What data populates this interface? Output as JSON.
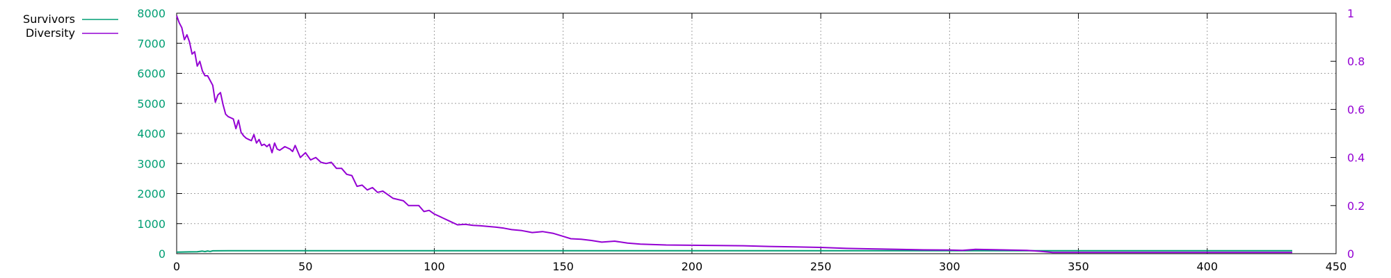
{
  "chart_data": {
    "type": "line",
    "legend_placement": "top-left",
    "grid": true,
    "x_axis": {
      "range": [
        0,
        450
      ],
      "ticks": [
        "0",
        "50",
        "100",
        "150",
        "200",
        "250",
        "300",
        "350",
        "400",
        "450"
      ]
    },
    "y_axis_left": {
      "range": [
        0,
        8000
      ],
      "ticks": [
        "0",
        "1000",
        "2000",
        "3000",
        "4000",
        "5000",
        "6000",
        "7000",
        "8000"
      ],
      "color": "#009e73"
    },
    "y_axis_right": {
      "range": [
        0,
        1
      ],
      "ticks": [
        "0",
        "0.2",
        "0.4",
        "0.6",
        "0.8",
        "1"
      ],
      "color": "#9400d3"
    },
    "series": [
      {
        "name": "Survivors",
        "axis": "left",
        "color": "#009e73",
        "x": [
          0,
          2,
          5,
          8,
          10,
          11,
          12,
          13,
          14,
          20,
          100,
          200,
          300,
          400,
          433
        ],
        "y": [
          50,
          55,
          60,
          65,
          85,
          70,
          90,
          75,
          95,
          100,
          100,
          100,
          100,
          100,
          100
        ]
      },
      {
        "name": "Diversity",
        "axis": "right",
        "color": "#9400d3",
        "x": [
          0,
          1,
          2,
          3,
          4,
          5,
          6,
          7,
          8,
          9,
          10,
          11,
          12,
          13,
          14,
          15,
          16,
          17,
          18,
          19,
          20,
          21,
          22,
          23,
          24,
          25,
          26,
          27,
          28,
          29,
          30,
          31,
          32,
          33,
          34,
          35,
          36,
          37,
          38,
          39,
          40,
          42,
          44,
          45,
          46,
          48,
          50,
          52,
          54,
          56,
          58,
          60,
          62,
          64,
          66,
          68,
          70,
          72,
          74,
          76,
          78,
          80,
          82,
          84,
          86,
          88,
          90,
          92,
          94,
          96,
          98,
          100,
          103,
          106,
          109,
          112,
          115,
          118,
          121,
          124,
          127,
          130,
          134,
          138,
          142,
          146,
          150,
          153,
          157,
          161,
          165,
          170,
          175,
          180,
          190,
          200,
          210,
          220,
          230,
          240,
          250,
          260,
          270,
          280,
          290,
          300,
          305,
          310,
          320,
          330,
          335,
          340,
          360,
          380,
          400,
          433
        ],
        "y": [
          0.99,
          0.96,
          0.94,
          0.89,
          0.91,
          0.88,
          0.83,
          0.84,
          0.78,
          0.8,
          0.76,
          0.74,
          0.74,
          0.72,
          0.7,
          0.63,
          0.66,
          0.67,
          0.62,
          0.58,
          0.57,
          0.565,
          0.56,
          0.52,
          0.555,
          0.505,
          0.49,
          0.48,
          0.475,
          0.47,
          0.495,
          0.46,
          0.475,
          0.45,
          0.455,
          0.445,
          0.455,
          0.42,
          0.46,
          0.435,
          0.43,
          0.445,
          0.435,
          0.425,
          0.45,
          0.4,
          0.42,
          0.39,
          0.4,
          0.38,
          0.375,
          0.38,
          0.355,
          0.355,
          0.33,
          0.325,
          0.28,
          0.285,
          0.265,
          0.275,
          0.255,
          0.26,
          0.245,
          0.23,
          0.225,
          0.22,
          0.2,
          0.2,
          0.2,
          0.175,
          0.18,
          0.165,
          0.15,
          0.135,
          0.12,
          0.122,
          0.118,
          0.116,
          0.113,
          0.11,
          0.106,
          0.1,
          0.096,
          0.088,
          0.092,
          0.085,
          0.072,
          0.062,
          0.06,
          0.055,
          0.048,
          0.052,
          0.044,
          0.04,
          0.036,
          0.035,
          0.034,
          0.033,
          0.03,
          0.028,
          0.026,
          0.022,
          0.02,
          0.018,
          0.016,
          0.015,
          0.014,
          0.018,
          0.016,
          0.014,
          0.01,
          0.005,
          0.005,
          0.005,
          0.005,
          0.005
        ]
      }
    ]
  }
}
